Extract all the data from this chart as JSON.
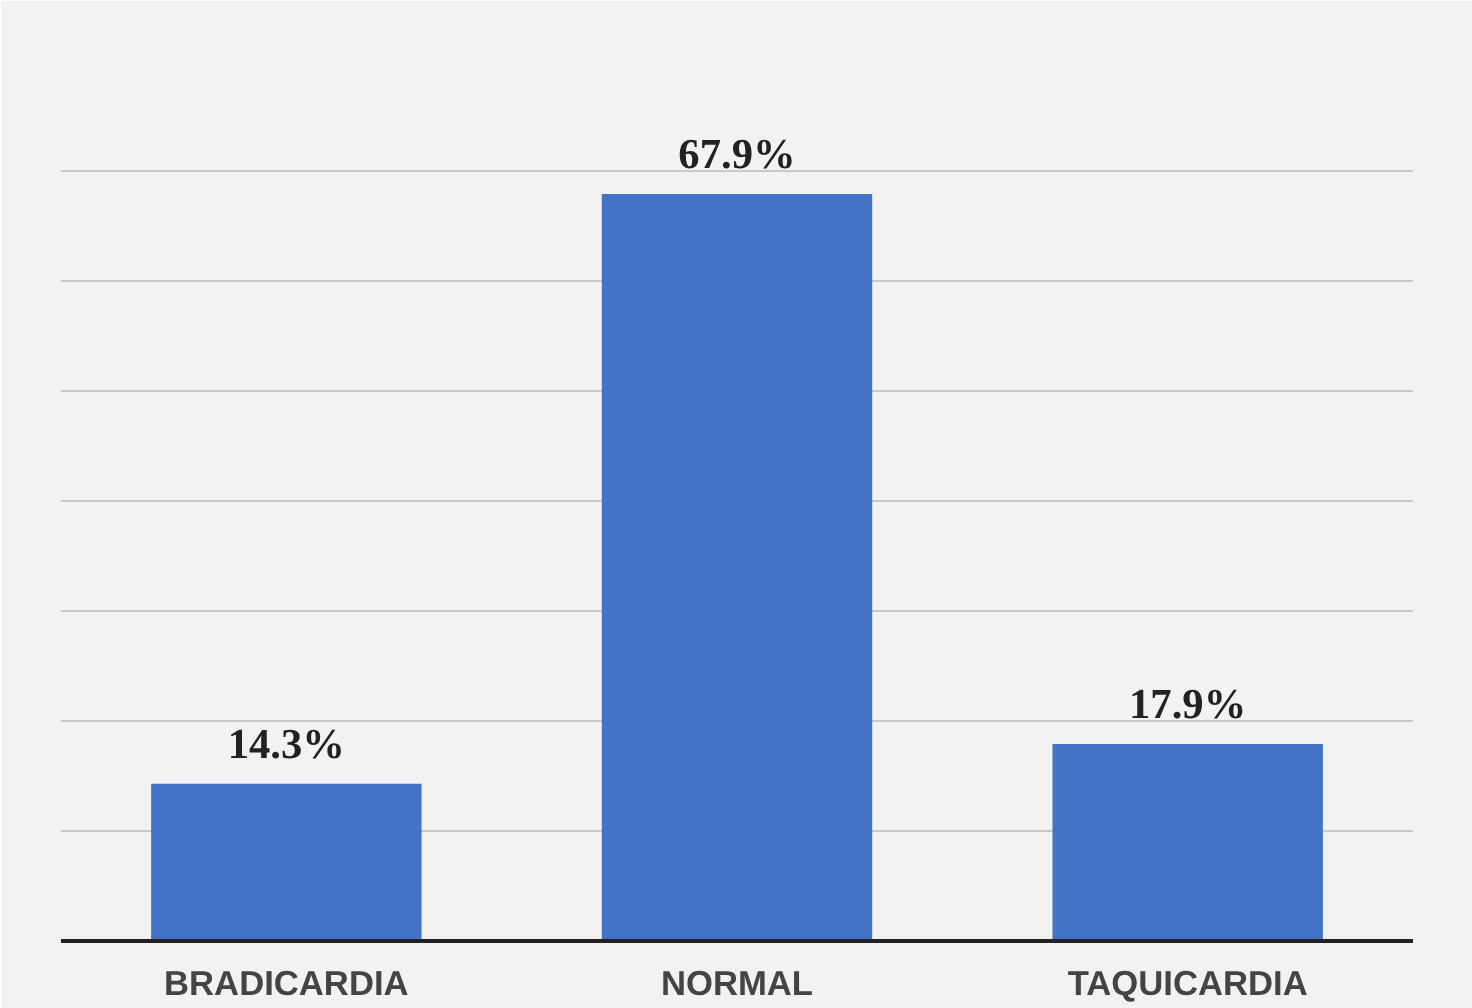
{
  "chart_data": {
    "type": "bar",
    "categories": [
      "BRADICARDIA",
      "NORMAL",
      "TAQUICARDIA"
    ],
    "values": [
      14.3,
      67.9,
      17.9
    ],
    "value_labels": [
      "14.3%",
      "67.9%",
      "17.9%"
    ],
    "color": "#4472c4",
    "ylim": [
      0,
      80
    ],
    "yticks": [
      {
        "value": 0,
        "label": null
      },
      {
        "value": 10,
        "label": null
      },
      {
        "value": 20,
        "label": null
      },
      {
        "value": 30,
        "label": null
      },
      {
        "value": 40,
        "label": null
      },
      {
        "value": 50,
        "label": null
      },
      {
        "value": 60,
        "label": null
      },
      {
        "value": 70,
        "label": null
      },
      {
        "value": 80,
        "label": null
      }
    ],
    "grid": "y",
    "tick_labels": "x"
  }
}
